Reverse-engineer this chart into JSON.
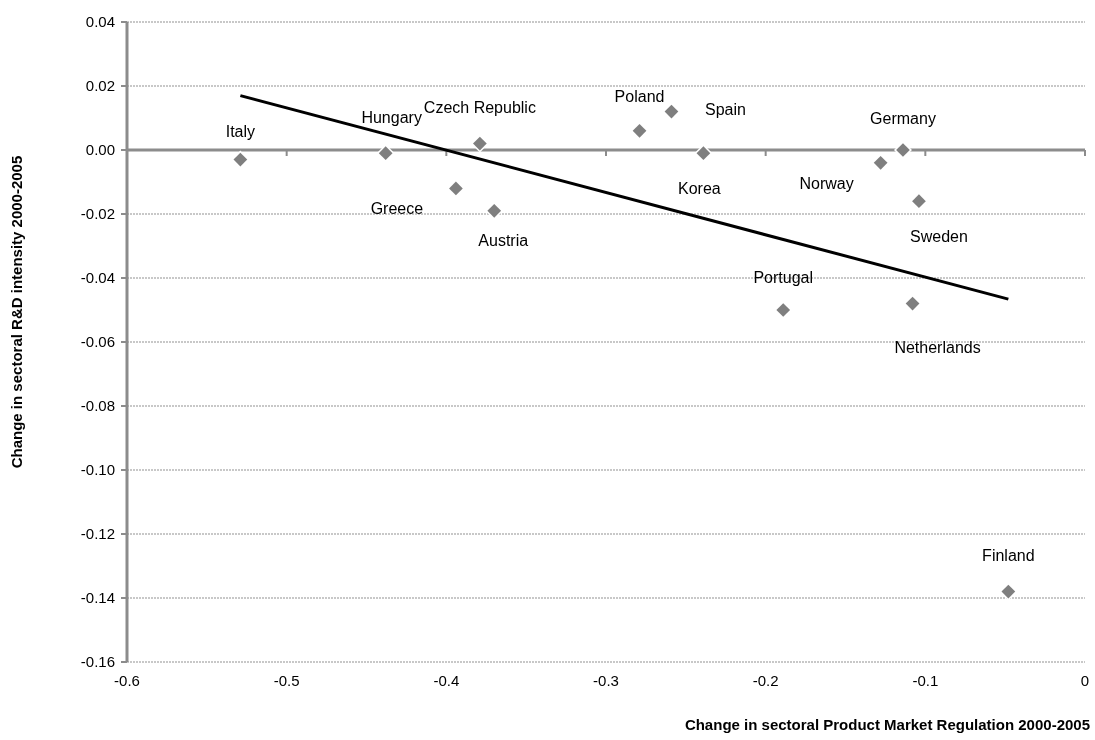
{
  "chart_data": {
    "type": "scatter",
    "xlabel": "Change in sectoral Product Market Regulation 2000-2005",
    "ylabel": "Change in sectoral R&D intensity 2000-2005",
    "xlim": [
      -0.6,
      0
    ],
    "xticks": [
      -0.6,
      -0.5,
      -0.4,
      -0.3,
      -0.2,
      -0.1,
      0
    ],
    "ylim": [
      -0.16,
      0.04
    ],
    "yticks": [
      {
        "value": -0.16,
        "label": "-0.16"
      },
      {
        "value": -0.14,
        "label": "-0.14"
      },
      {
        "value": -0.12,
        "label": "-0.12"
      },
      {
        "value": -0.1,
        "label": "-0.10"
      },
      {
        "value": -0.08,
        "label": "-0.08"
      },
      {
        "value": -0.06,
        "label": "-0.06"
      },
      {
        "value": -0.04,
        "label": "-0.04"
      },
      {
        "value": -0.02,
        "label": "-0.02"
      },
      {
        "value": 0,
        "label": "0.00"
      },
      {
        "value": 0.02,
        "label": "0.02"
      },
      {
        "value": 0.04,
        "label": "0.04"
      }
    ],
    "grid": "y",
    "marker": "diamond",
    "series": [
      {
        "color": "#7f7f7f",
        "x": [
          -0.529,
          -0.438,
          -0.379,
          -0.394,
          -0.37,
          -0.279,
          -0.259,
          -0.239,
          -0.128,
          -0.114,
          -0.104,
          -0.189,
          -0.108,
          -0.048
        ],
        "values": [
          -0.003,
          -0.001,
          0.002,
          -0.012,
          -0.019,
          0.006,
          0.012,
          -0.001,
          -0.004,
          0.0,
          -0.016,
          -0.05,
          -0.048,
          -0.138
        ]
      },
      {
        "type": "line",
        "color": "#000000",
        "marker": "none",
        "line_style": "solid",
        "x": [
          -0.529,
          -0.048
        ],
        "values": [
          0.017,
          -0.0466
        ]
      }
    ],
    "annotations": [
      {
        "text": "Italy",
        "x": -0.529,
        "y": -0.003
      },
      {
        "text": "Hungary",
        "x": -0.438,
        "y": -0.001
      },
      {
        "text": "Czech Republic",
        "x": -0.379,
        "y": 0.002
      },
      {
        "text": "Greece",
        "x": -0.394,
        "y": -0.012
      },
      {
        "text": "Austria",
        "x": -0.37,
        "y": -0.019
      },
      {
        "text": "Poland",
        "x": -0.279,
        "y": 0.006
      },
      {
        "text": "Spain",
        "x": -0.259,
        "y": 0.012
      },
      {
        "text": "Korea",
        "x": -0.239,
        "y": -0.001
      },
      {
        "text": "Norway",
        "x": -0.128,
        "y": -0.004
      },
      {
        "text": "Germany",
        "x": -0.114,
        "y": 0.0
      },
      {
        "text": "Sweden",
        "x": -0.104,
        "y": -0.016
      },
      {
        "text": "Portugal",
        "x": -0.189,
        "y": -0.05
      },
      {
        "text": "Netherlands",
        "x": -0.108,
        "y": -0.048
      },
      {
        "text": "Finland",
        "x": -0.048,
        "y": -0.138
      }
    ]
  }
}
